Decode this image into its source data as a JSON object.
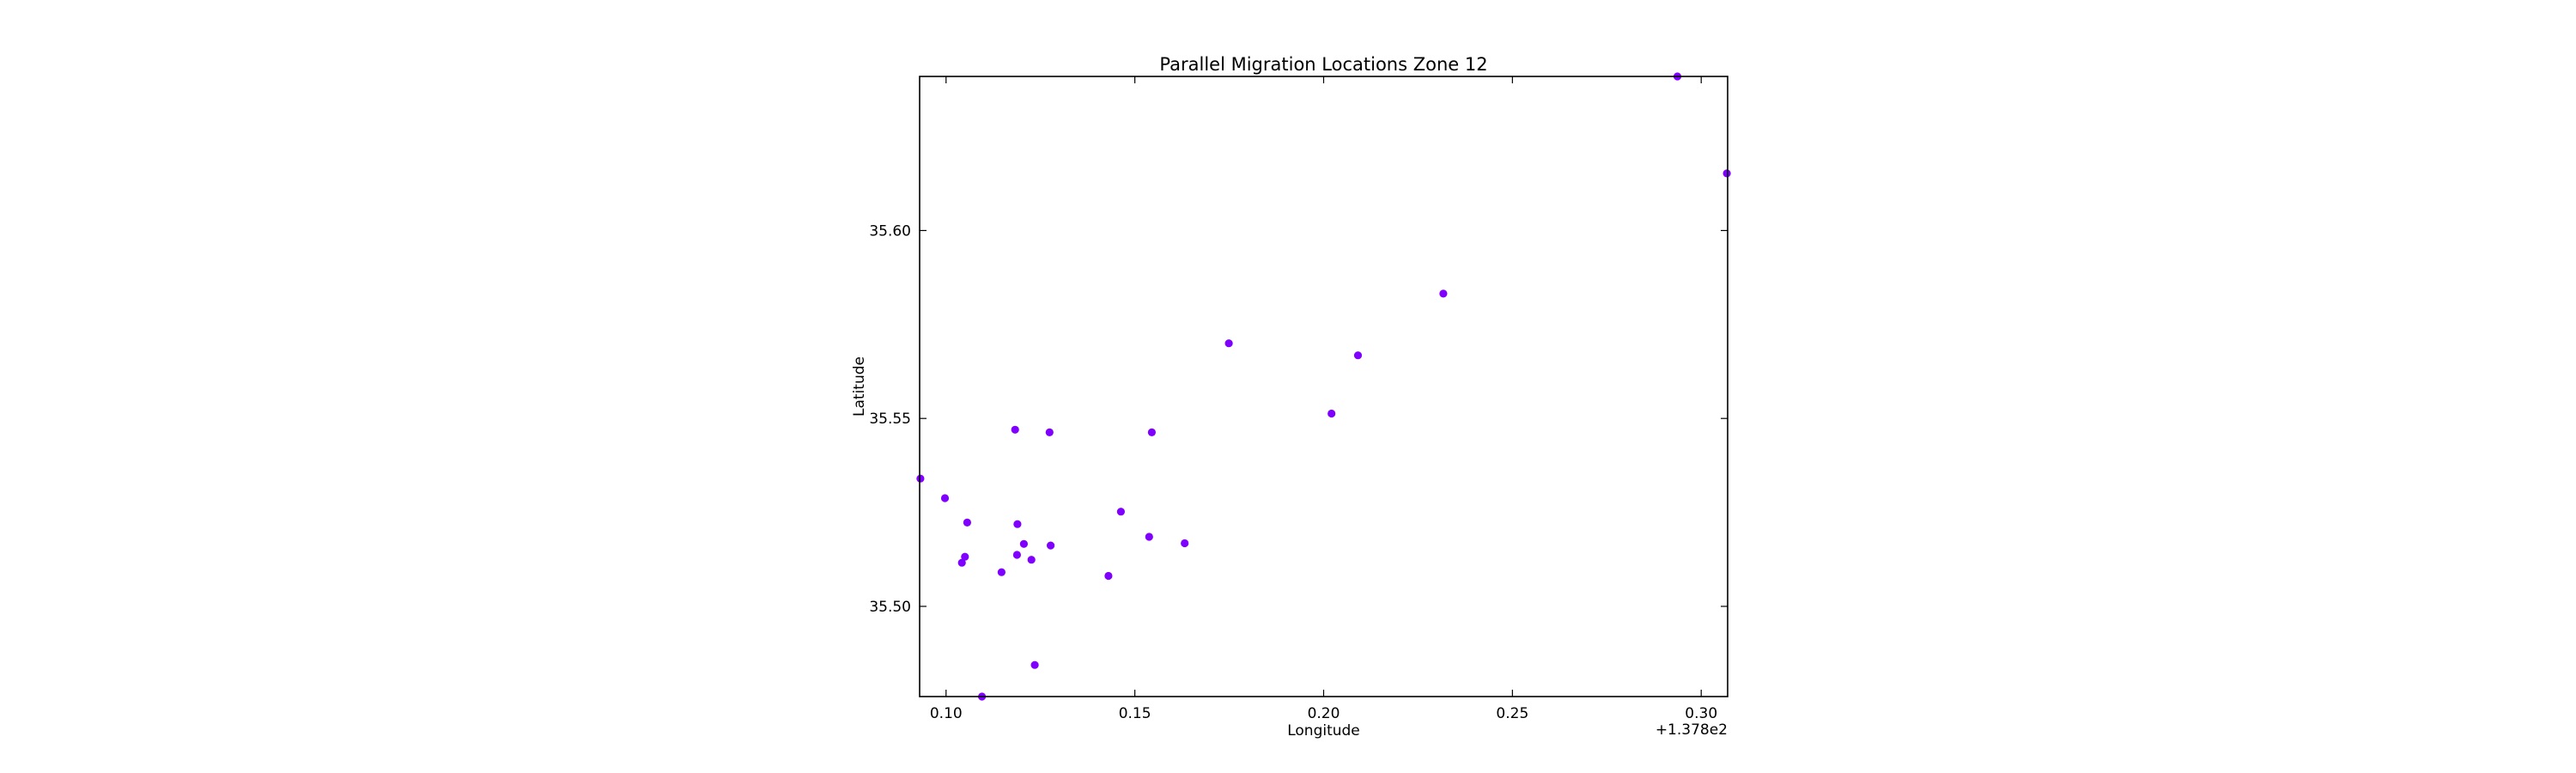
{
  "chart_data": {
    "type": "scatter",
    "title": "Parallel Migration Locations Zone 12",
    "xlabel": "Longitude",
    "ylabel": "Latitude",
    "x_offset_label": "+1.378e2",
    "xlim": [
      0.093,
      0.307
    ],
    "ylim": [
      35.476,
      35.641
    ],
    "x_ticks": [
      0.1,
      0.15,
      0.2,
      0.25,
      0.3
    ],
    "x_tick_labels": [
      "0.10",
      "0.15",
      "0.20",
      "0.25",
      "0.30"
    ],
    "y_ticks": [
      35.5,
      35.55,
      35.6
    ],
    "y_tick_labels": [
      "35.50",
      "35.55",
      "35.60"
    ],
    "grid": false,
    "marker_color": "#8000ff",
    "points": [
      {
        "x": 0.0932,
        "y": 35.534
      },
      {
        "x": 0.0997,
        "y": 35.5288
      },
      {
        "x": 0.1056,
        "y": 35.5223
      },
      {
        "x": 0.105,
        "y": 35.5132
      },
      {
        "x": 0.1042,
        "y": 35.5116
      },
      {
        "x": 0.1095,
        "y": 35.476
      },
      {
        "x": 0.1147,
        "y": 35.5091
      },
      {
        "x": 0.1183,
        "y": 35.547
      },
      {
        "x": 0.1189,
        "y": 35.5219
      },
      {
        "x": 0.1188,
        "y": 35.5137
      },
      {
        "x": 0.1206,
        "y": 35.5166
      },
      {
        "x": 0.1226,
        "y": 35.5124
      },
      {
        "x": 0.1235,
        "y": 35.4844
      },
      {
        "x": 0.1274,
        "y": 35.5463
      },
      {
        "x": 0.1277,
        "y": 35.5162
      },
      {
        "x": 0.143,
        "y": 35.5081
      },
      {
        "x": 0.1463,
        "y": 35.5252
      },
      {
        "x": 0.1538,
        "y": 35.5185
      },
      {
        "x": 0.1545,
        "y": 35.5463
      },
      {
        "x": 0.1632,
        "y": 35.5168
      },
      {
        "x": 0.1749,
        "y": 35.57
      },
      {
        "x": 0.2021,
        "y": 35.5513
      },
      {
        "x": 0.2091,
        "y": 35.5668
      },
      {
        "x": 0.2317,
        "y": 35.5832
      },
      {
        "x": 0.2937,
        "y": 35.641
      },
      {
        "x": 0.3068,
        "y": 35.6152
      }
    ]
  }
}
